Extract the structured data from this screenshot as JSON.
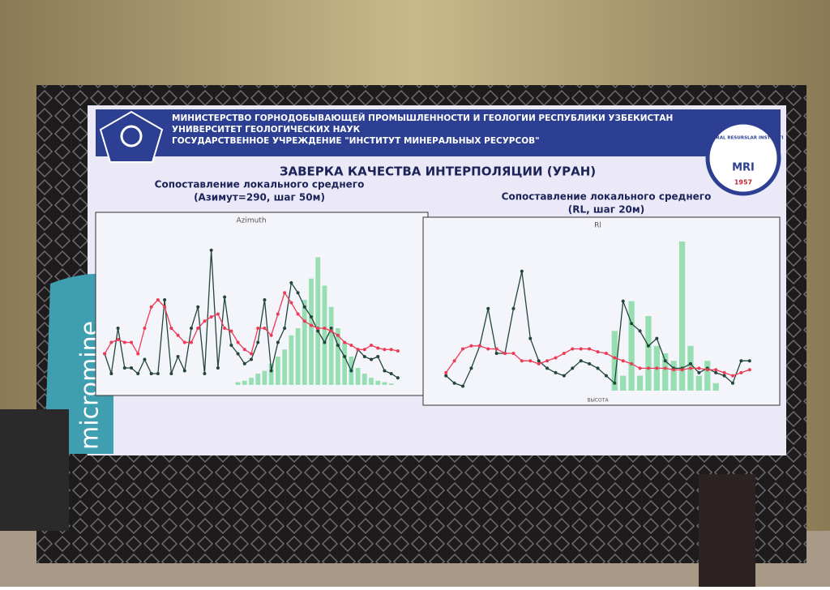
{
  "header": {
    "lines": [
      "МИНИСТЕРСТВО ГОРНОДОБЫВАЮЩЕЙ ПРОМЫШЛЕННОСТИ И ГЕОЛОГИИ РЕСПУБЛИКИ УЗБЕКИСТАН",
      "УНИВЕРСИТЕТ ГЕОЛОГИЧЕСКИХ НАУК",
      "ГОСУДАРСТВЕННОЕ УЧРЕЖДЕНИЕ \"ИНСТИТУТ МИНЕРАЛЬНЫХ РЕСУРСОВ\""
    ],
    "logo": {
      "ring": "MINERAL RESURSLAR INSTITUTI",
      "text": "MRI",
      "year": "1957"
    }
  },
  "slide_title": "ЗАВЕРКА КАЧЕСТВА ИНТЕРПОЛЯЦИИ (УРАН)",
  "banner": "micromine",
  "chart_data": [
    {
      "type": "line",
      "subtitle": [
        "Сопоставление локального среднего",
        "(Азимут=290, шаг 50м)"
      ],
      "title": "Azimuth",
      "ylim": [
        0,
        100
      ],
      "y2lim": [
        0,
        100
      ],
      "series": [
        {
          "color": "#24453a",
          "values": [
            22,
            8,
            40,
            12,
            12,
            8,
            18,
            8,
            8,
            60,
            8,
            20,
            10,
            40,
            55,
            8,
            95,
            12,
            62,
            28,
            22,
            15,
            18,
            30,
            60,
            10,
            30,
            40,
            72,
            65,
            55,
            48,
            38,
            30,
            40,
            28,
            20,
            10,
            25,
            20,
            18,
            20,
            10,
            8,
            5
          ]
        },
        {
          "color": "#ee3b55",
          "values": [
            22,
            30,
            32,
            30,
            30,
            22,
            40,
            55,
            60,
            55,
            40,
            35,
            30,
            30,
            40,
            45,
            48,
            50,
            40,
            38,
            30,
            25,
            22,
            40,
            40,
            35,
            50,
            65,
            58,
            50,
            45,
            42,
            40,
            40,
            38,
            35,
            30,
            28,
            25,
            25,
            28,
            26,
            25,
            25,
            24
          ]
        },
        {
          "color": "#86dba6",
          "axis": "y2",
          "values": [
            0,
            0,
            0,
            0,
            0,
            0,
            0,
            0,
            0,
            0,
            0,
            0,
            0,
            0,
            0,
            0,
            0,
            0,
            0,
            0,
            2,
            3,
            5,
            8,
            10,
            15,
            20,
            25,
            35,
            40,
            60,
            75,
            90,
            70,
            55,
            40,
            30,
            20,
            12,
            8,
            5,
            3,
            2,
            1,
            0
          ]
        }
      ]
    },
    {
      "type": "line",
      "subtitle": [
        "Сопоставление локального среднего",
        "(RL, шаг 20м)"
      ],
      "title": "Rl",
      "xlabel": "ВЫСОТА",
      "ylim": [
        0,
        100
      ],
      "y2lim": [
        0,
        100
      ],
      "series": [
        {
          "color": "#24453a",
          "values": [
            10,
            5,
            3,
            15,
            30,
            55,
            25,
            25,
            55,
            80,
            35,
            20,
            15,
            12,
            10,
            15,
            20,
            18,
            15,
            10,
            5,
            60,
            45,
            40,
            30,
            35,
            20,
            15,
            15,
            18,
            12,
            15,
            12,
            10,
            5,
            20,
            20
          ]
        },
        {
          "color": "#ee3b55",
          "values": [
            12,
            20,
            28,
            30,
            30,
            28,
            28,
            25,
            25,
            20,
            20,
            18,
            20,
            22,
            25,
            28,
            28,
            28,
            26,
            25,
            22,
            20,
            18,
            15,
            15,
            15,
            15,
            14,
            14,
            15,
            15,
            14,
            14,
            12,
            10,
            12,
            14
          ]
        },
        {
          "color": "#86dba6",
          "axis": "y2",
          "values": [
            0,
            0,
            0,
            0,
            0,
            0,
            0,
            0,
            0,
            0,
            0,
            0,
            0,
            0,
            0,
            0,
            0,
            0,
            0,
            0,
            40,
            10,
            60,
            10,
            50,
            30,
            25,
            20,
            100,
            30,
            10,
            20,
            5,
            0,
            0,
            0,
            0
          ]
        }
      ]
    }
  ]
}
